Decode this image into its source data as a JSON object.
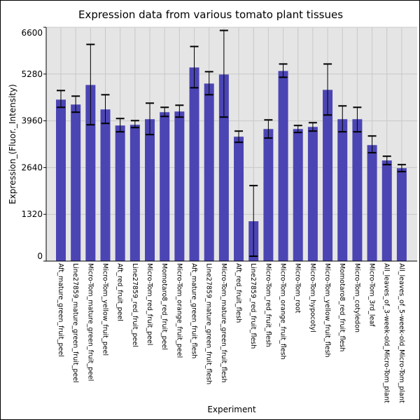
{
  "chart_data": {
    "type": "bar",
    "title": "Expression data from various tomato plant tissues",
    "xlabel": "Experiment",
    "ylabel": "Expression_(Fluor._Intensity)",
    "ylim": [
      0,
      6600
    ],
    "yticks": [
      0,
      1320,
      2640,
      3960,
      5280,
      6600
    ],
    "grid": true,
    "bar_color": "#4b45b4",
    "background_color": "#e5e5e5",
    "categories": [
      "Aft_mature_green_fruit_peel",
      "Line27859_mature_green_fruit_peel",
      "Micro-Tom_mature_green_fruit_peel",
      "Micro-Tom_yellow_fruit_peel",
      "Aft_red_fruit_peel",
      "Line27859_red_fruit_peel",
      "Micro-Tom_red_fruit_peel",
      "Momotaro8_red_fruit_peel",
      "Micro-Tom_orange_fruit_peel",
      "Aft_mature_green_fruit_flesh",
      "Line27859_mature_green_fruit_flesh",
      "Micro-Tom_mature_green_fruit_flesh",
      "Aft_red_fruit_flesh",
      "Line27859_red_fruit_flesh",
      "Micro-Tom_red_fruit_flesh",
      "Micro-Tom_orange_fruit_flesh",
      "Micro-Tom_root",
      "Micro-Tom_hypocotyl",
      "Micro-Tom_yellow_fruit_flesh",
      "Momotaro8_red_fruit_flesh",
      "Micro-Tom_cotyledon",
      "Micro-Tom_3rd_leaf",
      "All_leaves_of_3-week-old_Micro-Tom_plant",
      "All_leaves_of_5-week-old_Micro-Tom_plant"
    ],
    "values": [
      4558,
      4420,
      4972,
      4282,
      3828,
      3848,
      4006,
      4203,
      4223,
      5466,
      5012,
      5268,
      3512,
      1125,
      3729,
      5367,
      3729,
      3788,
      4834,
      4006,
      4006,
      3275,
      2841,
      2624
    ],
    "error_upper": [
      4815,
      4657,
      6117,
      4696,
      4025,
      3966,
      4459,
      4341,
      4400,
      6058,
      5347,
      6511,
      3670,
      2131,
      3986,
      5564,
      3828,
      3907,
      5564,
      4381,
      4341,
      3532,
      2960,
      2723
    ],
    "error_lower": [
      4341,
      4203,
      3848,
      3887,
      3650,
      3769,
      3571,
      4084,
      4065,
      4893,
      4696,
      4065,
      3354,
      138,
      3473,
      5189,
      3631,
      3670,
      4124,
      3650,
      3650,
      3059,
      2723,
      2526
    ]
  }
}
